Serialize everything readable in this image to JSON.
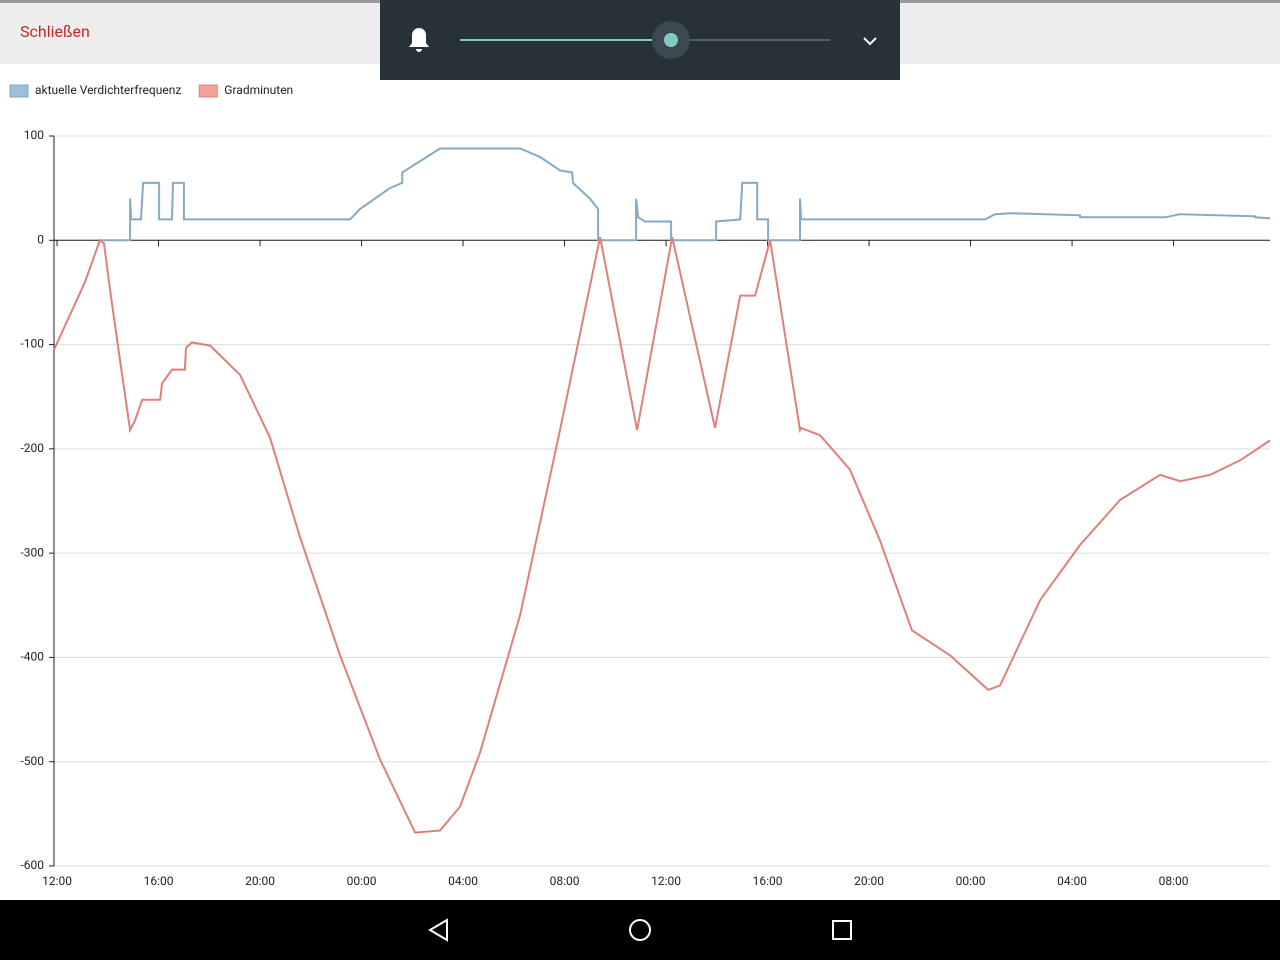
{
  "header": {
    "close": "Schließen"
  },
  "chart_data": {
    "type": "line",
    "series": [
      {
        "name": "aktuelle Verdichterfrequenz",
        "color": "#86a9c6",
        "swatch": "#9cc0dc",
        "x": [
          1.69,
          2.88,
          2.88,
          2.92,
          3.31,
          3.39,
          4.02,
          4.02,
          4.53,
          4.57,
          5.0,
          5.0,
          11.55,
          11.94,
          13.12,
          13.6,
          13.6,
          15.09,
          18.25,
          19.03,
          19.82,
          20.3,
          20.33,
          21.0,
          21.32,
          21.32,
          22.82,
          22.82,
          22.9,
          23.17,
          24.2,
          24.2,
          25.97,
          25.97,
          26.92,
          27.0,
          27.59,
          27.59,
          28.02,
          28.02,
          29.28,
          29.28,
          29.32,
          36.57,
          36.97,
          37.56,
          40.32,
          40.32,
          43.67,
          44.26,
          47.21,
          47.21,
          47.8
        ],
        "values": [
          0,
          0,
          40,
          20,
          20,
          55,
          55,
          20,
          20,
          55,
          55,
          20,
          20,
          30,
          50,
          55,
          65,
          88,
          88,
          80,
          67,
          65,
          55,
          40,
          30,
          0,
          0,
          40,
          22,
          18,
          18,
          0,
          0,
          18,
          20,
          55,
          55,
          20,
          20,
          0,
          0,
          40,
          20,
          20,
          25,
          26,
          24,
          22,
          22,
          25,
          23,
          22,
          21
        ]
      },
      {
        "name": "Gradminuten",
        "color": "#e0807a",
        "swatch": "#f4a39b",
        "x": [
          -0.12,
          1.1,
          1.69,
          1.85,
          2.09,
          2.48,
          2.88,
          3.07,
          3.35,
          4.06,
          4.14,
          4.53,
          5.04,
          5.08,
          5.32,
          6.03,
          7.21,
          8.39,
          9.58,
          11.15,
          12.73,
          14.11,
          15.09,
          15.88,
          16.67,
          18.25,
          19.82,
          21.4,
          22.86,
          24.24,
          25.93,
          26.92,
          27.51,
          28.1,
          29.28,
          29.32,
          30.07,
          31.25,
          32.43,
          33.69,
          35.19,
          36.69,
          37.16,
          38.74,
          40.32,
          41.89,
          43.47,
          44.26,
          45.44,
          46.62,
          47.8
        ],
        "values": [
          -105,
          -40,
          0,
          -3,
          -48,
          -115,
          -182,
          -173,
          -153,
          -153,
          -137,
          -124,
          -124,
          -103,
          -98,
          -101,
          -129,
          -189,
          -285,
          -398,
          -498,
          -568,
          -566,
          -543,
          -491,
          -359,
          -182,
          3,
          -182,
          3,
          -180,
          -53,
          -53,
          0,
          -182,
          -180,
          -187,
          -220,
          -288,
          -374,
          -398,
          -431,
          -427,
          -345,
          -292,
          -249,
          -225,
          -231,
          -225,
          -211,
          -192
        ]
      }
    ],
    "xlim": [
      -0.12,
      47.8
    ],
    "xticks": [
      {
        "value": 0,
        "label": "12:00"
      },
      {
        "value": 4,
        "label": "16:00"
      },
      {
        "value": 8,
        "label": "20:00"
      },
      {
        "value": 12,
        "label": "00:00"
      },
      {
        "value": 16,
        "label": "04:00"
      },
      {
        "value": 20,
        "label": "08:00"
      },
      {
        "value": 24,
        "label": "12:00"
      },
      {
        "value": 28,
        "label": "16:00"
      },
      {
        "value": 32,
        "label": "20:00"
      },
      {
        "value": 36,
        "label": "00:00"
      },
      {
        "value": 40,
        "label": "04:00"
      },
      {
        "value": 44,
        "label": "08:00"
      }
    ],
    "ylim": [
      -600,
      100
    ],
    "yticks": [
      -600,
      -500,
      -400,
      -300,
      -200,
      -100,
      0,
      100
    ],
    "grid": true
  }
}
